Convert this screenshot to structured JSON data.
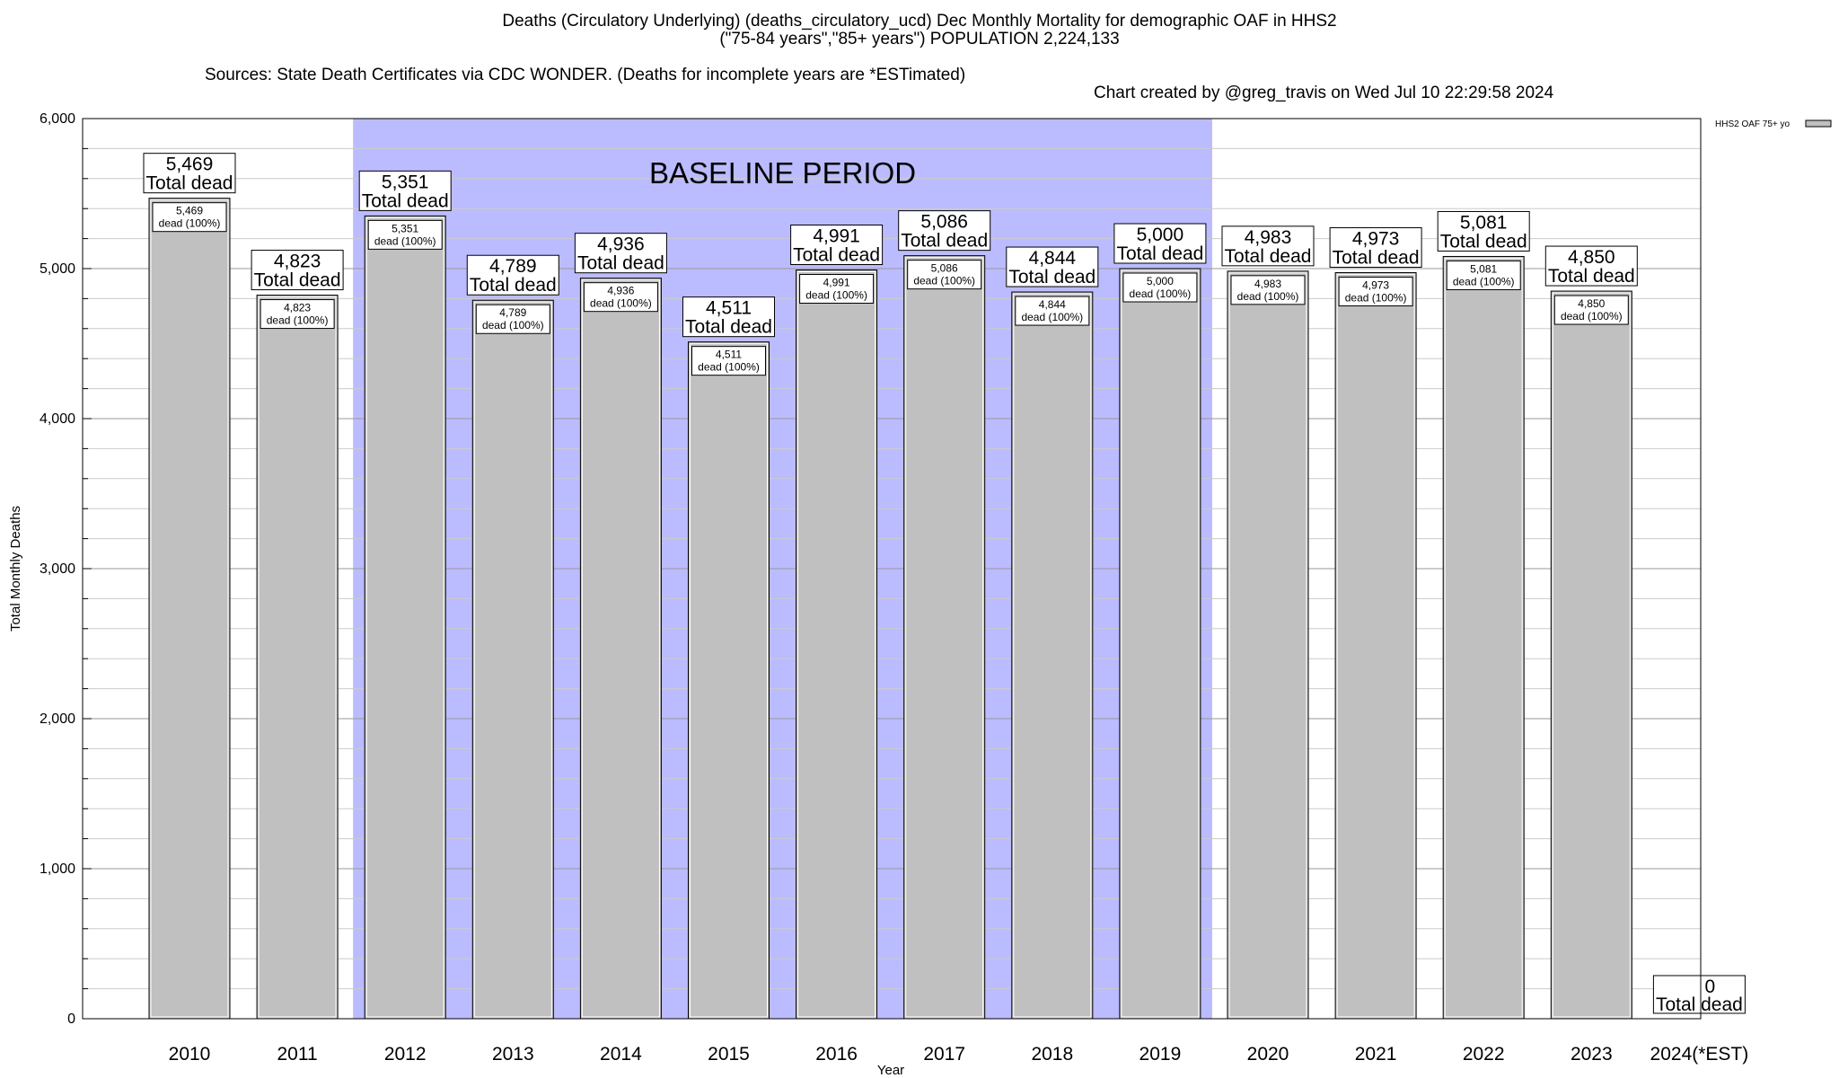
{
  "header": {
    "line1": "Deaths (Circulatory Underlying) (deaths_circulatory_ucd) Dec Monthly Mortality for demographic OAF in HHS2",
    "line2": "(\"75-84 years\",\"85+ years\") POPULATION 2,224,133",
    "line3_sources": "Sources: State Death Certificates via CDC WONDER. (Deaths for incomplete years are *ESTimated)",
    "line3_credit": "Chart created by @greg_travis on Wed Jul 10 22:29:58 2024"
  },
  "chart_data": {
    "type": "bar",
    "xlabel": "Year",
    "ylabel": "Total Monthly Deaths",
    "ylim": [
      0,
      6000
    ],
    "yticks": [
      0,
      1000,
      2000,
      3000,
      4000,
      5000,
      6000
    ],
    "ytick_labels": [
      "0",
      "1,000",
      "2,000",
      "3,000",
      "4,000",
      "5,000",
      "6,000"
    ],
    "grid": true,
    "legend": {
      "placement": "top-right",
      "entries": [
        "HHS2 OAF 75+ yo"
      ]
    },
    "categories": [
      "2010",
      "2011",
      "2012",
      "2013",
      "2014",
      "2015",
      "2016",
      "2017",
      "2018",
      "2019",
      "2020",
      "2021",
      "2022",
      "2023",
      "2024(*EST)"
    ],
    "series": [
      {
        "name": "HHS2 OAF 75+ yo",
        "values": [
          5469,
          4823,
          5351,
          4789,
          4936,
          4511,
          4991,
          5086,
          4844,
          5000,
          4983,
          4973,
          5081,
          4850,
          0
        ],
        "color": "#c0c0c0"
      }
    ],
    "top_labels": [
      "5,469",
      "4,823",
      "5,351",
      "4,789",
      "4,936",
      "4,511",
      "4,991",
      "5,086",
      "4,844",
      "5,000",
      "4,983",
      "4,973",
      "5,081",
      "4,850",
      "0"
    ],
    "top_label_suffix": "Total dead",
    "inner_labels": [
      "5,469",
      "4,823",
      "5,351",
      "4,789",
      "4,936",
      "4,511",
      "4,991",
      "5,086",
      "4,844",
      "5,000",
      "4,983",
      "4,973",
      "5,081",
      "4,850"
    ],
    "inner_label_suffix": "dead (100%)",
    "baseline": {
      "label": "BASELINE PERIOD",
      "start": "2012",
      "end": "2019",
      "color": "#bbbbff"
    }
  }
}
